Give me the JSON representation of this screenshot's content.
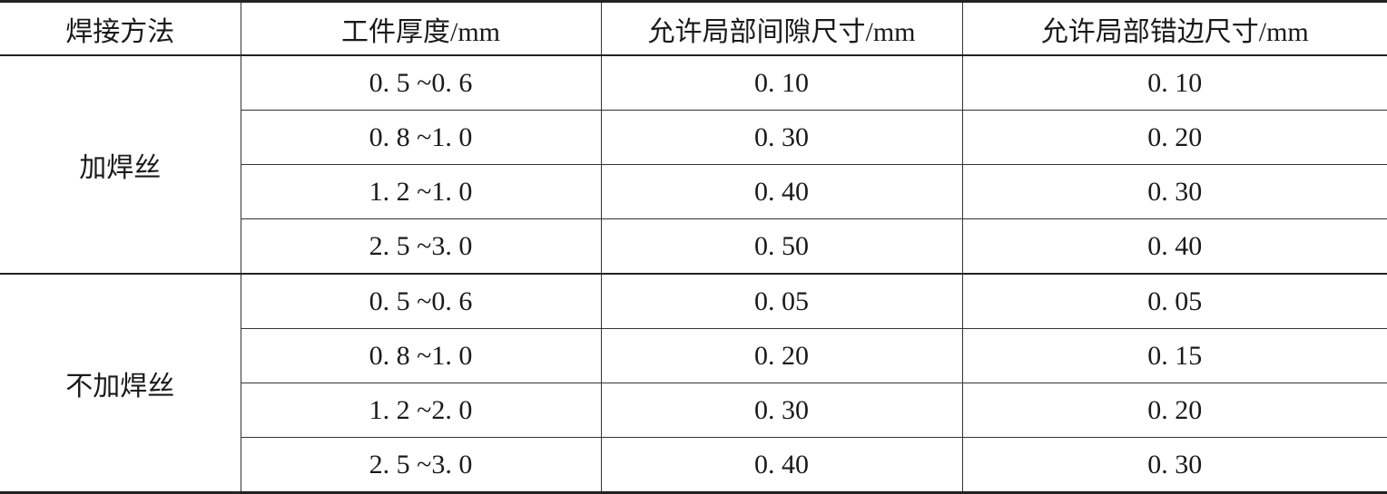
{
  "headers": [
    "焊接方法",
    "工件厚度/mm",
    "允许局部间隙尺寸/mm",
    "允许局部错边尺寸/mm"
  ],
  "groups": [
    {
      "method": "加焊丝",
      "rows": [
        [
          "0. 5 ~0. 6",
          "0. 10",
          "0. 10"
        ],
        [
          "0. 8 ~1. 0",
          "0. 30",
          "0. 20"
        ],
        [
          "1. 2 ~1. 0",
          "0. 40",
          "0. 30"
        ],
        [
          "2. 5 ~3. 0",
          "0. 50",
          "0. 40"
        ]
      ]
    },
    {
      "method": "不加焊丝",
      "rows": [
        [
          "0. 5 ~0. 6",
          "0. 05",
          "0. 05"
        ],
        [
          "0. 8 ~1. 0",
          "0. 20",
          "0. 15"
        ],
        [
          "1. 2 ~2. 0",
          "0. 30",
          "0. 20"
        ],
        [
          "2. 5 ~3. 0",
          "0. 40",
          "0. 30"
        ]
      ]
    }
  ]
}
